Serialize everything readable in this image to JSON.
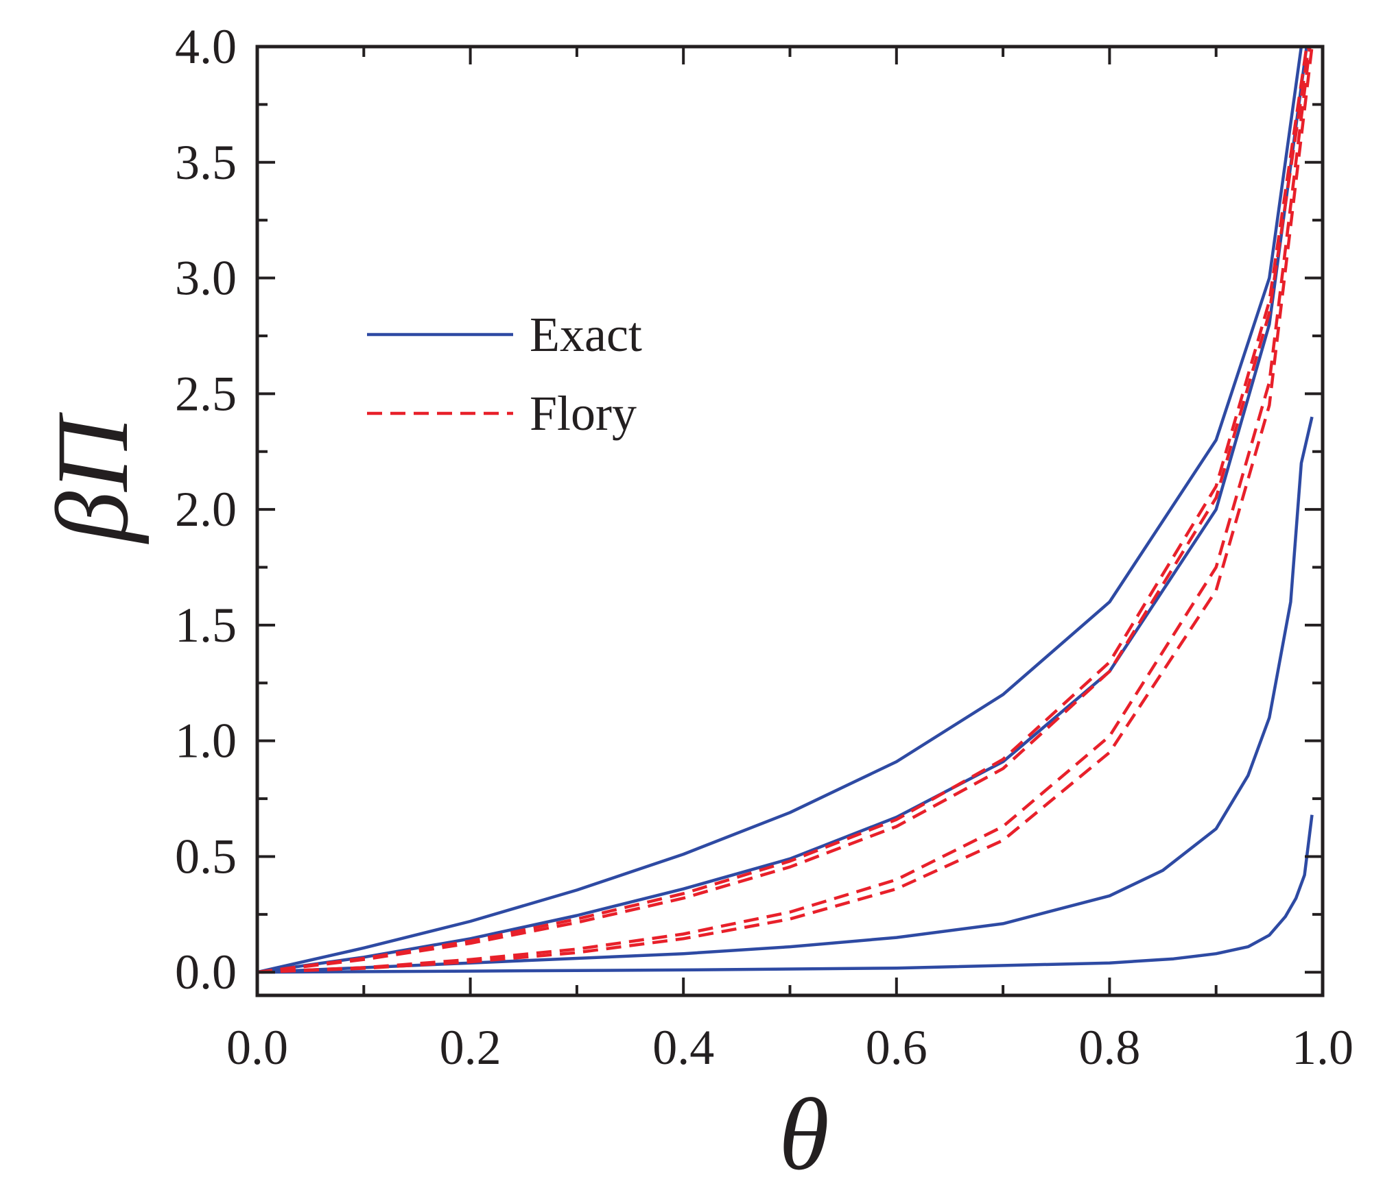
{
  "chart_data": {
    "type": "line",
    "title": "",
    "xlabel": "θ",
    "ylabel": "βΠ",
    "xlim": [
      0.0,
      1.0
    ],
    "ylim": [
      -0.1,
      4.0
    ],
    "xticks": [
      "0.0",
      "0.2",
      "0.4",
      "0.6",
      "0.8",
      "1.0"
    ],
    "yticks": [
      "0.0",
      "0.5",
      "1.0",
      "1.5",
      "2.0",
      "2.5",
      "3.0",
      "3.5",
      "4.0"
    ],
    "legend": {
      "placement": "upper-left",
      "entries": [
        "Exact",
        "Flory"
      ]
    },
    "colors": {
      "exact": "#2e4aa3",
      "flory": "#e8202a",
      "axis": "#231f20"
    },
    "series": [
      {
        "name": "Exact",
        "group": "exact",
        "x": [
          0,
          0.1,
          0.2,
          0.3,
          0.4,
          0.5,
          0.6,
          0.7,
          0.8,
          0.9,
          0.95,
          0.98
        ],
        "y": [
          0,
          0.105,
          0.22,
          0.355,
          0.51,
          0.69,
          0.91,
          1.2,
          1.6,
          2.3,
          3.0,
          4.0
        ]
      },
      {
        "name": "Exact",
        "group": "exact",
        "x": [
          0,
          0.1,
          0.2,
          0.3,
          0.4,
          0.5,
          0.6,
          0.7,
          0.8,
          0.9,
          0.95,
          0.985
        ],
        "y": [
          0,
          0.065,
          0.145,
          0.245,
          0.36,
          0.49,
          0.67,
          0.91,
          1.3,
          2.0,
          2.8,
          4.0
        ]
      },
      {
        "name": "Exact",
        "group": "exact",
        "x": [
          0,
          0.1,
          0.2,
          0.3,
          0.4,
          0.5,
          0.6,
          0.7,
          0.8,
          0.85,
          0.9,
          0.93,
          0.95,
          0.97,
          0.98,
          0.99
        ],
        "y": [
          0,
          0.02,
          0.04,
          0.06,
          0.08,
          0.11,
          0.15,
          0.21,
          0.33,
          0.44,
          0.62,
          0.85,
          1.1,
          1.6,
          2.2,
          2.4
        ]
      },
      {
        "name": "Exact",
        "group": "exact",
        "x": [
          0,
          0.2,
          0.4,
          0.6,
          0.8,
          0.86,
          0.9,
          0.93,
          0.95,
          0.965,
          0.975,
          0.983,
          0.99
        ],
        "y": [
          0,
          0.005,
          0.01,
          0.018,
          0.04,
          0.058,
          0.08,
          0.11,
          0.16,
          0.24,
          0.32,
          0.42,
          0.68
        ]
      },
      {
        "name": "Flory",
        "group": "flory",
        "x": [
          0,
          0.1,
          0.2,
          0.3,
          0.4,
          0.5,
          0.6,
          0.7,
          0.8,
          0.9,
          0.95,
          0.985
        ],
        "y": [
          0,
          0.06,
          0.135,
          0.23,
          0.34,
          0.48,
          0.66,
          0.92,
          1.34,
          2.1,
          2.9,
          4.0
        ]
      },
      {
        "name": "Flory",
        "group": "flory",
        "x": [
          0,
          0.1,
          0.2,
          0.3,
          0.4,
          0.5,
          0.6,
          0.7,
          0.8,
          0.9,
          0.95,
          0.987
        ],
        "y": [
          0,
          0.055,
          0.125,
          0.215,
          0.32,
          0.455,
          0.63,
          0.88,
          1.3,
          2.05,
          2.85,
          4.0
        ]
      },
      {
        "name": "Flory",
        "group": "flory",
        "x": [
          0,
          0.1,
          0.2,
          0.3,
          0.4,
          0.5,
          0.6,
          0.7,
          0.8,
          0.9,
          0.95,
          0.988
        ],
        "y": [
          0,
          0.02,
          0.055,
          0.1,
          0.165,
          0.26,
          0.4,
          0.63,
          1.02,
          1.75,
          2.55,
          4.0
        ]
      },
      {
        "name": "Flory",
        "group": "flory",
        "x": [
          0,
          0.1,
          0.2,
          0.3,
          0.4,
          0.5,
          0.6,
          0.7,
          0.8,
          0.9,
          0.95,
          0.99
        ],
        "y": [
          0,
          0.017,
          0.045,
          0.085,
          0.145,
          0.23,
          0.36,
          0.57,
          0.95,
          1.65,
          2.45,
          4.0
        ]
      }
    ]
  }
}
